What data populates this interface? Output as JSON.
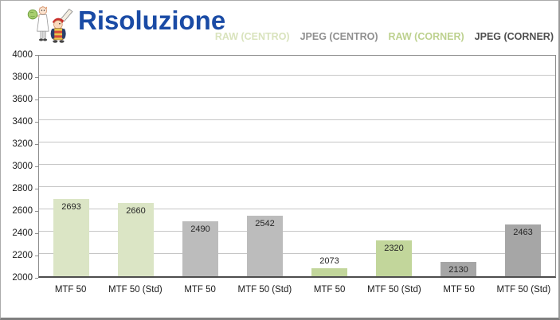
{
  "header": {
    "title": "Risoluzione",
    "title_color": "#1a4ba5",
    "logo_name": "cartoon-mascots-logo"
  },
  "legend": {
    "position": "top-right",
    "items": [
      {
        "label": "RAW (CENTRO)",
        "text_color": "#d9e3bd"
      },
      {
        "label": "JPEG (CENTRO)",
        "text_color": "#8f8f8f"
      },
      {
        "label": "RAW (CORNER)",
        "text_color": "#bdd18f"
      },
      {
        "label": "JPEG (CORNER)",
        "text_color": "#4f4f4f"
      }
    ]
  },
  "chart_data": {
    "type": "bar",
    "title": "Risoluzione",
    "xlabel": "",
    "ylabel": "",
    "ylim": [
      2000,
      4000
    ],
    "yticks": [
      2000,
      2200,
      2400,
      2600,
      2800,
      3000,
      3200,
      3400,
      3600,
      3800,
      4000
    ],
    "grid": true,
    "legend_position": "top-right",
    "series_colors": {
      "RAW (CENTRO)": "#dbe5c5",
      "JPEG (CENTRO)": "#bcbcbc",
      "RAW (CORNER)": "#c2d69b",
      "JPEG (CORNER)": "#a6a6a6"
    },
    "categories": [
      "MTF 50",
      "MTF 50 (Std)",
      "MTF 50",
      "MTF 50 (Std)",
      "MTF 50",
      "MTF 50 (Std)",
      "MTF 50",
      "MTF 50 (Std)"
    ],
    "bars": [
      {
        "category": "MTF 50",
        "series": "RAW (CENTRO)",
        "value": 2693
      },
      {
        "category": "MTF 50 (Std)",
        "series": "RAW (CENTRO)",
        "value": 2660
      },
      {
        "category": "MTF 50",
        "series": "JPEG (CENTRO)",
        "value": 2490
      },
      {
        "category": "MTF 50 (Std)",
        "series": "JPEG (CENTRO)",
        "value": 2542
      },
      {
        "category": "MTF 50",
        "series": "RAW (CORNER)",
        "value": 2073
      },
      {
        "category": "MTF 50 (Std)",
        "series": "RAW (CORNER)",
        "value": 2320
      },
      {
        "category": "MTF 50",
        "series": "JPEG (CORNER)",
        "value": 2130
      },
      {
        "category": "MTF 50 (Std)",
        "series": "JPEG (CORNER)",
        "value": 2463
      }
    ]
  }
}
